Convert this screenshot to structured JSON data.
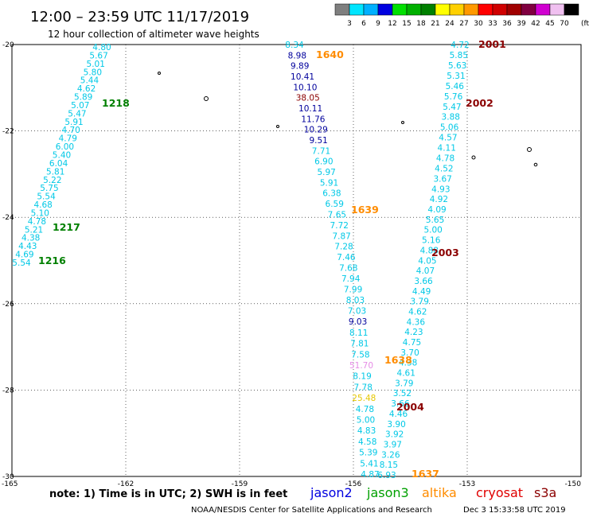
{
  "header": {
    "title": "12:00 – 23:59 UTC 11/17/2019",
    "subtitle": "12 hour collection of altimeter wave heights"
  },
  "colorbar": {
    "unit": "(ft)",
    "bins": [
      {
        "color": "#7f7f7f",
        "label": "3"
      },
      {
        "color": "#00e5ff",
        "label": "6"
      },
      {
        "color": "#00b0ff",
        "label": "9"
      },
      {
        "color": "#0000e0",
        "label": "12"
      },
      {
        "color": "#00e000",
        "label": "15"
      },
      {
        "color": "#00b000",
        "label": "18"
      },
      {
        "color": "#008000",
        "label": "21"
      },
      {
        "color": "#ffff00",
        "label": "24"
      },
      {
        "color": "#ffd000",
        "label": "27"
      },
      {
        "color": "#ff9900",
        "label": "30"
      },
      {
        "color": "#ff0000",
        "label": "33"
      },
      {
        "color": "#d00000",
        "label": "36"
      },
      {
        "color": "#a00000",
        "label": "39"
      },
      {
        "color": "#800040",
        "label": "42"
      },
      {
        "color": "#d000d0",
        "label": "45"
      },
      {
        "color": "#f0c0f0",
        "label": "70"
      },
      {
        "color": "#000000",
        "label": ""
      }
    ]
  },
  "map": {
    "lat_ticks": [
      "-20",
      "-22",
      "-24",
      "-26",
      "-28",
      "-30"
    ],
    "lon_ticks": [
      "-165",
      "-162",
      "-159",
      "-156",
      "-153",
      "-150"
    ]
  },
  "color_key": {
    "c": "#00c8e6",
    "b": "#00009c",
    "r": "#8b0000",
    "o": "#ff8c00",
    "g": "#008000",
    "y": "#e6c800",
    "p": "#e68ce6"
  },
  "tracks": [
    {
      "id": "track-1216-1218",
      "obs": [
        [
          "4.80",
          "c"
        ],
        [
          "5.67",
          "c"
        ],
        [
          "5.01",
          "c"
        ],
        [
          "5.80",
          "c"
        ],
        [
          "5.44",
          "c"
        ],
        [
          "4.62",
          "c"
        ],
        [
          "5.89",
          "c"
        ],
        [
          "5.07",
          "c"
        ],
        [
          "5.47",
          "c"
        ],
        [
          "5.91",
          "c"
        ],
        [
          "4.70",
          "c"
        ],
        [
          "4.79",
          "c"
        ],
        [
          "6.00",
          "c"
        ],
        [
          "5.40",
          "c"
        ],
        [
          "6.04",
          "c"
        ],
        [
          "5.81",
          "c"
        ],
        [
          "5.22",
          "c"
        ],
        [
          "5.75",
          "c"
        ],
        [
          "5.54",
          "c"
        ],
        [
          "4.68",
          "c"
        ],
        [
          "5.10",
          "c"
        ],
        [
          "4.78",
          "c"
        ],
        [
          "5.21",
          "c"
        ],
        [
          "4.38",
          "c"
        ],
        [
          "4.43",
          "c"
        ],
        [
          "4.69",
          "c"
        ],
        [
          "5.54",
          "c"
        ]
      ]
    },
    {
      "id": "track-1637-1640",
      "obs": [
        [
          "8.34",
          "c"
        ],
        [
          "8.98",
          "b"
        ],
        [
          "9.89",
          "b"
        ],
        [
          "10.41",
          "b"
        ],
        [
          "10.10",
          "b"
        ],
        [
          "38.05",
          "r"
        ],
        [
          "10.11",
          "b"
        ],
        [
          "11.76",
          "b"
        ],
        [
          "10.29",
          "b"
        ],
        [
          "9.51",
          "b"
        ],
        [
          "7.71",
          "c"
        ],
        [
          "6.90",
          "c"
        ],
        [
          "5.97",
          "c"
        ],
        [
          "5.91",
          "c"
        ],
        [
          "6.38",
          "c"
        ],
        [
          "6.59",
          "c"
        ],
        [
          "7.65",
          "c"
        ],
        [
          "7.72",
          "c"
        ],
        [
          "7.87",
          "c"
        ],
        [
          "7.28",
          "c"
        ],
        [
          "7.46",
          "c"
        ],
        [
          "7.68",
          "c"
        ],
        [
          "7.94",
          "c"
        ],
        [
          "7.99",
          "c"
        ],
        [
          "8.03",
          "c"
        ],
        [
          "7.03",
          "c"
        ],
        [
          "9.03",
          "b"
        ],
        [
          "8.11",
          "c"
        ],
        [
          "7.81",
          "c"
        ],
        [
          "7.58",
          "c"
        ],
        [
          "51.70",
          "p"
        ],
        [
          "8.19",
          "c"
        ],
        [
          "7.78",
          "c"
        ],
        [
          "25.48",
          "y"
        ],
        [
          "4.78",
          "c"
        ],
        [
          "5.00",
          "c"
        ],
        [
          "4.83",
          "c"
        ],
        [
          "4.58",
          "c"
        ],
        [
          "5.39",
          "c"
        ],
        [
          "5.41",
          "c"
        ],
        [
          "4.87",
          "c"
        ]
      ]
    },
    {
      "id": "track-2001-2004",
      "obs": [
        [
          "4.72",
          "c"
        ],
        [
          "5.85",
          "c"
        ],
        [
          "5.63",
          "c"
        ],
        [
          "5.31",
          "c"
        ],
        [
          "5.46",
          "c"
        ],
        [
          "5.76",
          "c"
        ],
        [
          "5.47",
          "c"
        ],
        [
          "3.88",
          "c"
        ],
        [
          "5.06",
          "c"
        ],
        [
          "4.57",
          "c"
        ],
        [
          "4.11",
          "c"
        ],
        [
          "4.78",
          "c"
        ],
        [
          "4.52",
          "c"
        ],
        [
          "3.67",
          "c"
        ],
        [
          "4.93",
          "c"
        ],
        [
          "4.92",
          "c"
        ],
        [
          "4.09",
          "c"
        ],
        [
          "5.65",
          "c"
        ],
        [
          "5.00",
          "c"
        ],
        [
          "5.16",
          "c"
        ],
        [
          "4.88",
          "c"
        ],
        [
          "4.05",
          "c"
        ],
        [
          "4.07",
          "c"
        ],
        [
          "3.66",
          "c"
        ],
        [
          "4.49",
          "c"
        ],
        [
          "3.79",
          "c"
        ],
        [
          "4.62",
          "c"
        ],
        [
          "4.36",
          "c"
        ],
        [
          "4.23",
          "c"
        ],
        [
          "4.75",
          "c"
        ],
        [
          "3.70",
          "c"
        ],
        [
          "4.38",
          "c"
        ],
        [
          "4.61",
          "c"
        ],
        [
          "3.79",
          "c"
        ],
        [
          "3.52",
          "c"
        ],
        [
          "3.66",
          "c"
        ],
        [
          "4.46",
          "c"
        ],
        [
          "3.90",
          "c"
        ],
        [
          "3.92",
          "c"
        ],
        [
          "3.97",
          "c"
        ],
        [
          "3.26",
          "c"
        ],
        [
          "8.15",
          "c"
        ],
        [
          "6.93",
          "c"
        ]
      ]
    }
  ],
  "pass_labels": [
    {
      "text": "1218",
      "color": "g"
    },
    {
      "text": "1217",
      "color": "g"
    },
    {
      "text": "1216",
      "color": "g"
    },
    {
      "text": "1640",
      "color": "o"
    },
    {
      "text": "1639",
      "color": "o"
    },
    {
      "text": "1638",
      "color": "o"
    },
    {
      "text": "1637",
      "color": "o"
    },
    {
      "text": "2001",
      "color": "r"
    },
    {
      "text": "2002",
      "color": "r"
    },
    {
      "text": "2003",
      "color": "r"
    },
    {
      "text": "2004",
      "color": "r"
    }
  ],
  "footer": {
    "note": "note:  1) Time is in UTC;  2) SWH is in feet",
    "satellites": [
      {
        "name": "jason2",
        "color": "#0000e0"
      },
      {
        "name": "jason3",
        "color": "#00a000"
      },
      {
        "name": "altika",
        "color": "#ff8c00"
      },
      {
        "name": "cryosat",
        "color": "#e00000"
      },
      {
        "name": "s3a",
        "color": "#8b0000"
      }
    ],
    "credit": "NOAA/NESDIS Center for Satellite Applications and Research",
    "timestamp": "Dec  3 15:33:58 UTC 2019"
  }
}
